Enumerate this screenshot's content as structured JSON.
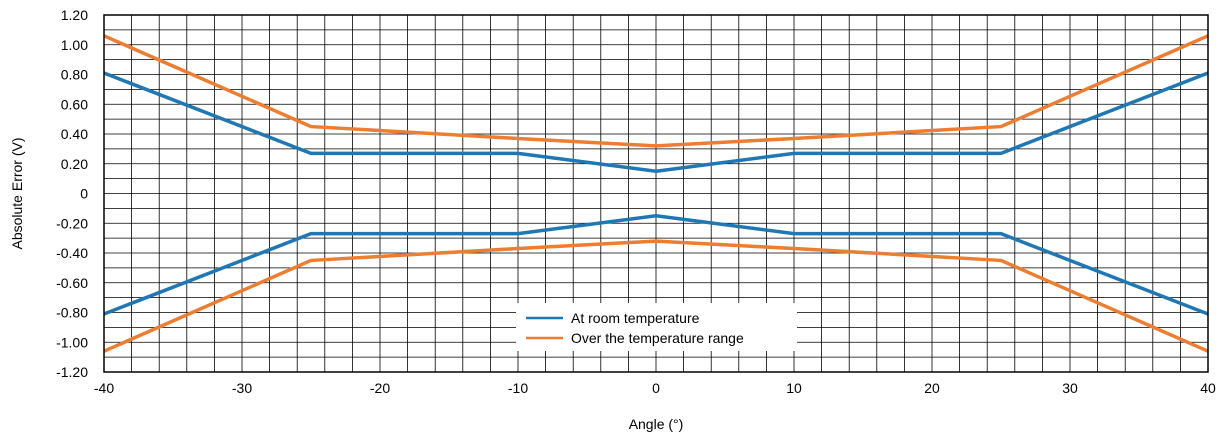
{
  "chart_data": {
    "type": "line",
    "title": "",
    "xlabel": "Angle (°)",
    "ylabel": "Absolute Error (V)",
    "xlim": [
      -40,
      40
    ],
    "ylim": [
      -1.2,
      1.2
    ],
    "x_ticks": [
      -40,
      -30,
      -20,
      -10,
      0,
      10,
      20,
      30,
      40
    ],
    "x_tick_labels": [
      "-40",
      "-30",
      "-20",
      "-10",
      "0",
      "10",
      "20",
      "30",
      "40"
    ],
    "y_ticks": [
      1.2,
      1.0,
      0.8,
      0.6,
      0.4,
      0.2,
      0,
      -0.2,
      -0.4,
      -0.6,
      -0.8,
      -1.0,
      -1.2
    ],
    "y_tick_labels": [
      "1.20",
      "1.00",
      "0.80",
      "0.60",
      "0.40",
      "0.20",
      "0",
      "-0.20",
      "-0.40",
      "-0.60",
      "-0.80",
      "-1.00",
      "-1.20"
    ],
    "grid": true,
    "minor_grid_step_x": 2,
    "minor_grid_step_y": 0.1,
    "legend_position": "bottom-center",
    "series": [
      {
        "name": "At room temperature",
        "color": "#1f77b4",
        "lines": [
          {
            "x": [
              -40,
              -25,
              -10,
              0,
              10,
              25,
              40
            ],
            "y": [
              0.81,
              0.27,
              0.27,
              0.15,
              0.27,
              0.27,
              0.81
            ]
          },
          {
            "x": [
              -40,
              -25,
              -10,
              0,
              10,
              25,
              40
            ],
            "y": [
              -0.81,
              -0.27,
              -0.27,
              -0.15,
              -0.27,
              -0.27,
              -0.81
            ]
          }
        ]
      },
      {
        "name": "Over the temperature range",
        "color": "#ed7d31",
        "lines": [
          {
            "x": [
              -40,
              -25,
              -10,
              0,
              10,
              25,
              40
            ],
            "y": [
              1.06,
              0.45,
              0.37,
              0.32,
              0.37,
              0.45,
              1.06
            ]
          },
          {
            "x": [
              -40,
              -25,
              -10,
              0,
              10,
              25,
              40
            ],
            "y": [
              -1.06,
              -0.45,
              -0.37,
              -0.32,
              -0.37,
              -0.45,
              -1.06
            ]
          }
        ]
      }
    ]
  }
}
